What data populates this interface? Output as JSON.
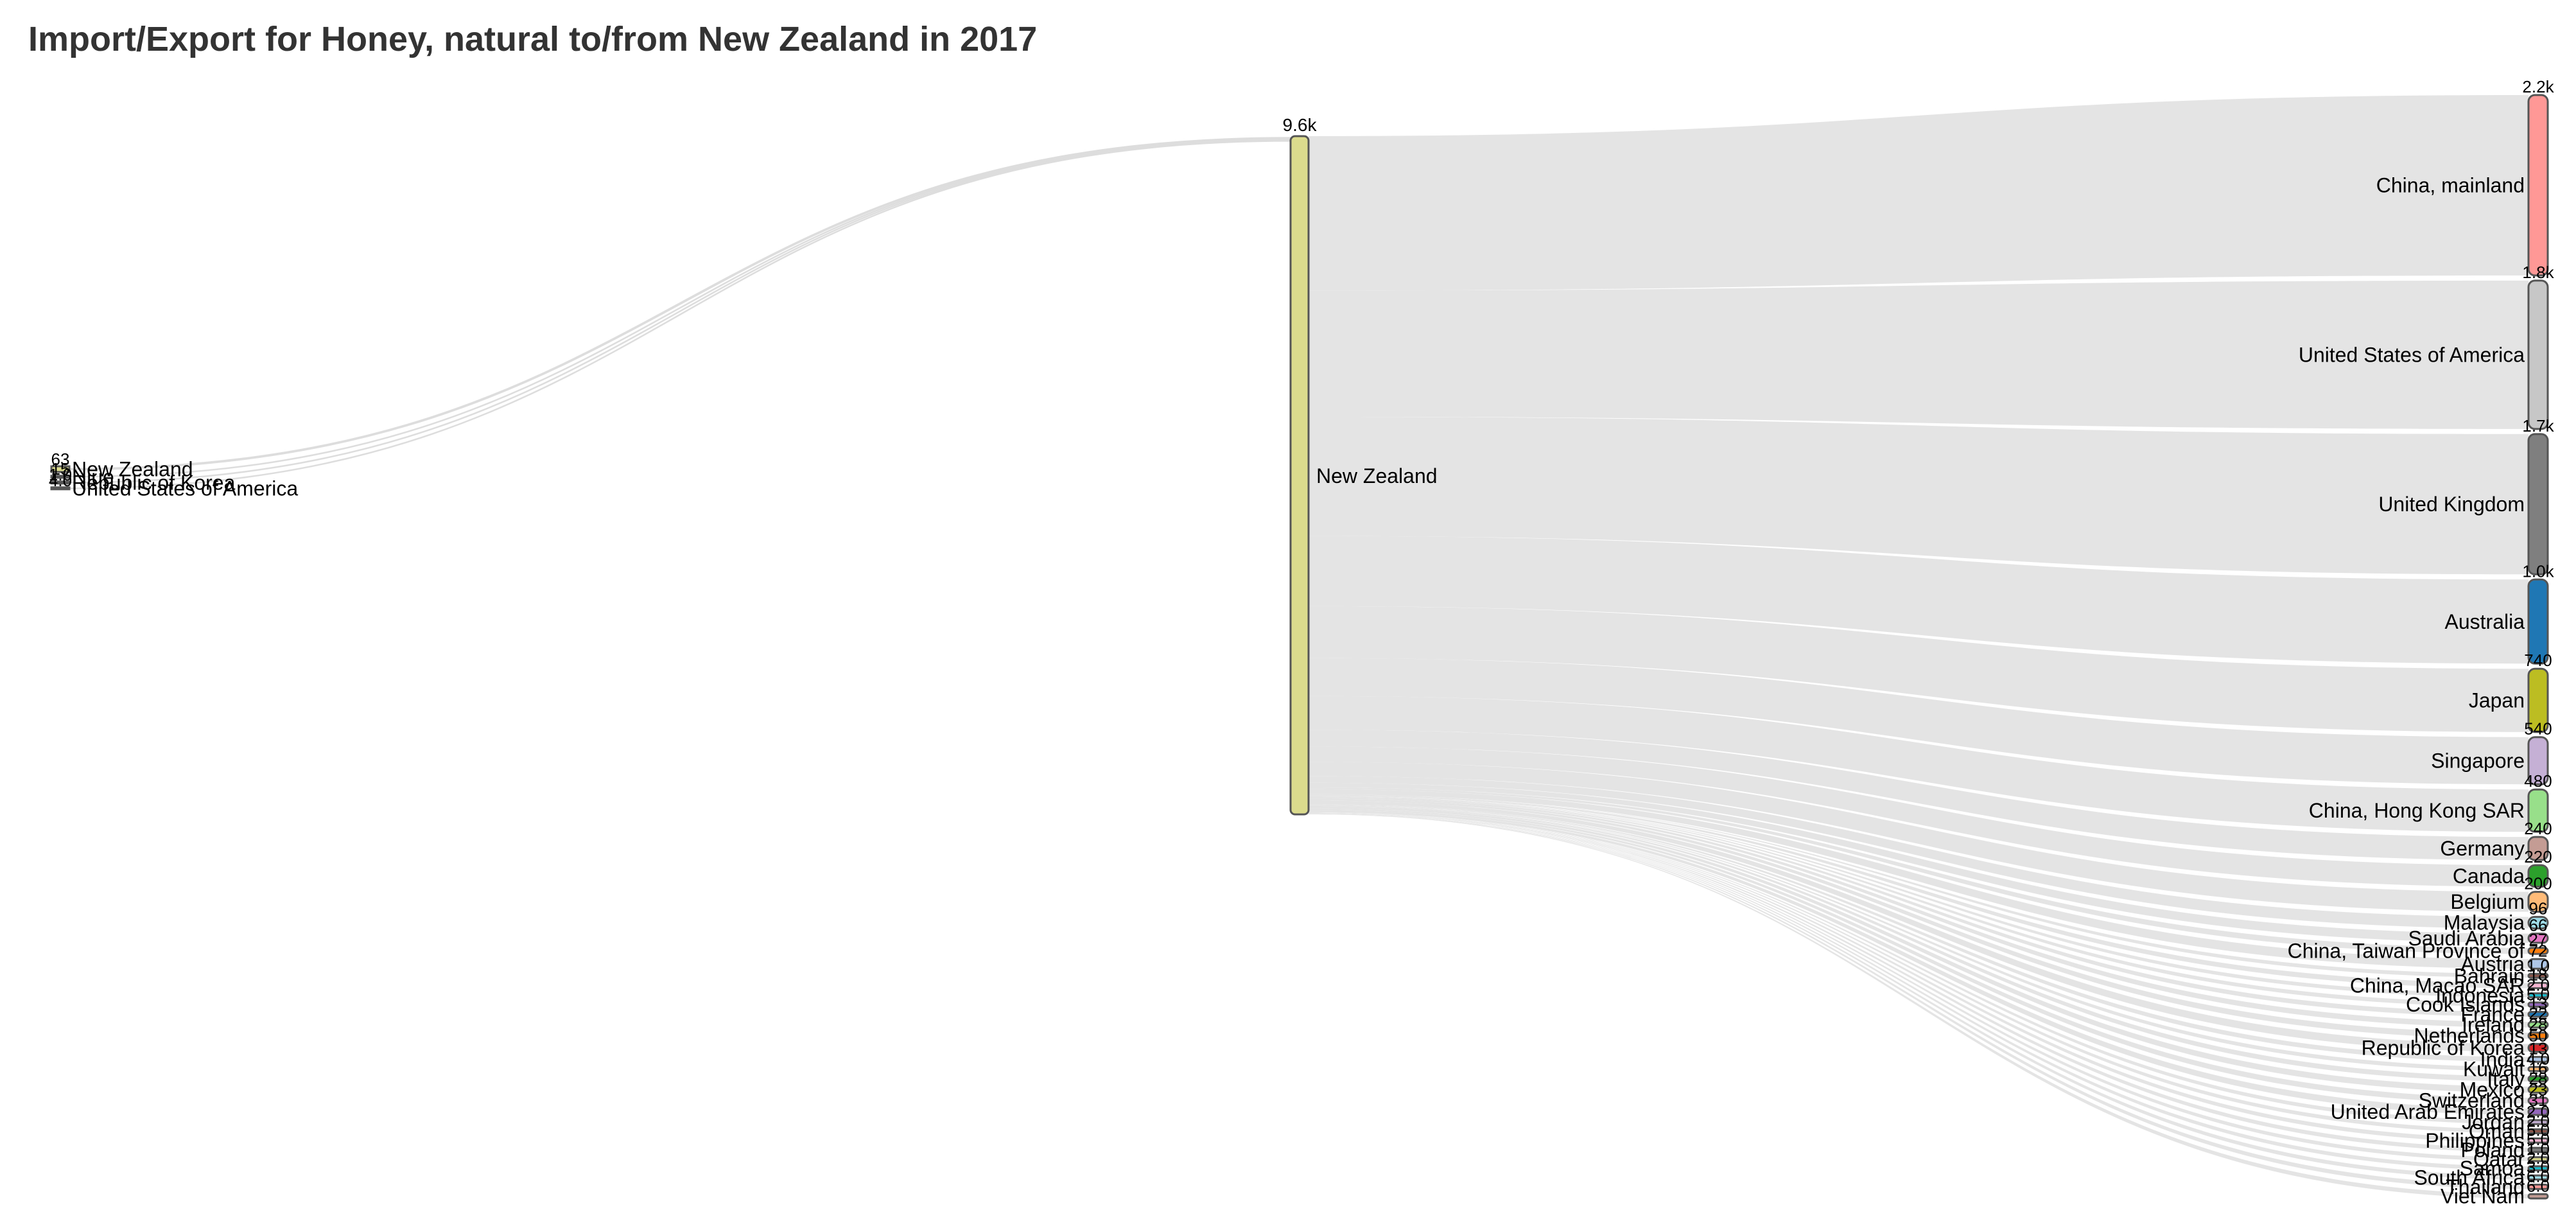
{
  "chart_data": {
    "type": "sankey",
    "title": "Import/Export for Honey, natural to/from New Zealand in 2017",
    "center": {
      "name": "New Zealand",
      "value_label": "9.6k",
      "color": "#dbdb8d"
    },
    "sources": [
      {
        "name": "New Zealand",
        "value": 63,
        "value_label": "63",
        "color": "#dbdb8d"
      },
      {
        "name": "Niue",
        "value": 15,
        "value_label": "15",
        "color": "#c49c94"
      },
      {
        "name": "Republic of Korea",
        "value": 1,
        "value_label": "1.0",
        "color": "#d62728"
      },
      {
        "name": "United States of America",
        "value": 4,
        "value_label": "4.0",
        "color": "#c7c7c7"
      }
    ],
    "destinations": [
      {
        "name": "China, mainland",
        "value": 2200,
        "value_label": "2.2k",
        "color": "#ff9896"
      },
      {
        "name": "United States of America",
        "value": 1800,
        "value_label": "1.8k",
        "color": "#c7c7c7"
      },
      {
        "name": "United Kingdom",
        "value": 1700,
        "value_label": "1.7k",
        "color": "#7f7f7f"
      },
      {
        "name": "Australia",
        "value": 1000,
        "value_label": "1.0k",
        "color": "#1f77b4"
      },
      {
        "name": "Japan",
        "value": 740,
        "value_label": "740",
        "color": "#bcbd22"
      },
      {
        "name": "Singapore",
        "value": 540,
        "value_label": "540",
        "color": "#c5b0d5"
      },
      {
        "name": "China, Hong Kong SAR",
        "value": 480,
        "value_label": "480",
        "color": "#98df8a"
      },
      {
        "name": "Germany",
        "value": 240,
        "value_label": "240",
        "color": "#c49c94"
      },
      {
        "name": "Canada",
        "value": 220,
        "value_label": "220",
        "color": "#2ca02c"
      },
      {
        "name": "Belgium",
        "value": 200,
        "value_label": "200",
        "color": "#ffbb78"
      },
      {
        "name": "Malaysia",
        "value": 96,
        "value_label": "96",
        "color": "#9edae5"
      },
      {
        "name": "Saudi Arabia",
        "value": 66,
        "value_label": "66",
        "color": "#e377c2"
      },
      {
        "name": "China, Taiwan Province of",
        "value": 27,
        "value_label": "27",
        "color": "#ff7f0e"
      },
      {
        "name": "Austria",
        "value": 72,
        "value_label": "72",
        "color": "#aec7e8"
      },
      {
        "name": "Bahrain",
        "value": 1,
        "value_label": "1.0",
        "color": "#8c564b"
      },
      {
        "name": "China, Macao SAR",
        "value": 18,
        "value_label": "18",
        "color": "#f7b6d2"
      },
      {
        "name": "Indonesia",
        "value": 2,
        "value_label": "2.0",
        "color": "#17becf"
      },
      {
        "name": "Cook Islands",
        "value": 5,
        "value_label": "5.0",
        "color": "#9467bd"
      },
      {
        "name": "France",
        "value": 13,
        "value_label": "13",
        "color": "#1f77b4"
      },
      {
        "name": "Ireland",
        "value": 22,
        "value_label": "22",
        "color": "#98df8a"
      },
      {
        "name": "Netherlands",
        "value": 28,
        "value_label": "28",
        "color": "#ff7f0e"
      },
      {
        "name": "Republic of Korea",
        "value": 50,
        "value_label": "50",
        "color": "#d62728"
      },
      {
        "name": "India",
        "value": 13,
        "value_label": "13",
        "color": "#aec7e8"
      },
      {
        "name": "Kuwait",
        "value": 4,
        "value_label": "4.0",
        "color": "#ffbb78"
      },
      {
        "name": "Italy",
        "value": 16,
        "value_label": "16",
        "color": "#2ca02c"
      },
      {
        "name": "Mexico",
        "value": 28,
        "value_label": "28",
        "color": "#bcbd22"
      },
      {
        "name": "Switzerland",
        "value": 23,
        "value_label": "23",
        "color": "#e377c2"
      },
      {
        "name": "United Arab Emirates",
        "value": 31,
        "value_label": "31",
        "color": "#9467bd"
      },
      {
        "name": "Jordan",
        "value": 2,
        "value_label": "2.0",
        "color": "#c5b0d5"
      },
      {
        "name": "Oman",
        "value": 2,
        "value_label": "2.0",
        "color": "#8c564b"
      },
      {
        "name": "Philippines",
        "value": 5,
        "value_label": "5.0",
        "color": "#f7b6d2"
      },
      {
        "name": "Poland",
        "value": 5,
        "value_label": "5.0",
        "color": "#7f7f7f"
      },
      {
        "name": "Qatar",
        "value": 1,
        "value_label": "1.0",
        "color": "#dbdb8d"
      },
      {
        "name": "Samoa",
        "value": 2,
        "value_label": "2.0",
        "color": "#17becf"
      },
      {
        "name": "South Africa",
        "value": 3,
        "value_label": "3.0",
        "color": "#9edae5"
      },
      {
        "name": "Thailand",
        "value": 6,
        "value_label": "6.0",
        "color": "#ff9896"
      },
      {
        "name": "Viet Nam",
        "value": 6,
        "value_label": "6.0",
        "color": "#c49c94"
      }
    ]
  }
}
